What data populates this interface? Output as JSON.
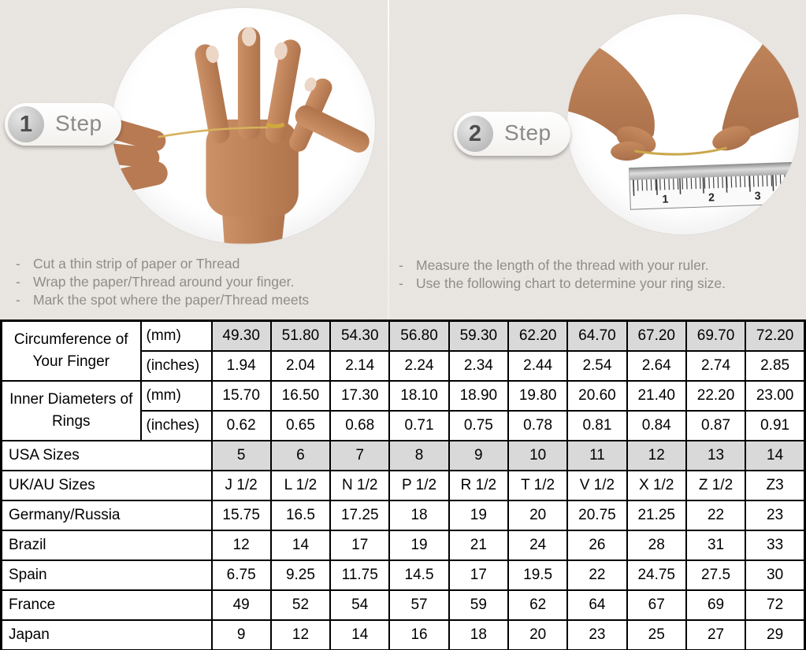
{
  "page": {
    "background": "#e9e6e2",
    "shade_color": "#d9d9d9",
    "text_gray": "#8f8c89"
  },
  "steps": [
    {
      "number": "1",
      "label": "Step",
      "bullet": "-",
      "instructions": [
        "Cut a thin strip of paper or Thread",
        "Wrap the paper/Thread around your finger.",
        "Mark the spot where the paper/Thread meets"
      ]
    },
    {
      "number": "2",
      "label": "Step",
      "bullet": "-",
      "instructions": [
        "Measure the length of the thread with your ruler.",
        "Use the following chart to determine your ring size."
      ]
    }
  ],
  "photos": {
    "step1": "hand with ring and thread",
    "step2": "hands measuring thread with ruler",
    "ruler_numbers": [
      "1",
      "2",
      "3"
    ]
  },
  "table": {
    "rows": [
      {
        "label": "Circumference of Your Finger",
        "center": true,
        "rowspan": 2,
        "unit": "(mm)",
        "shaded": true,
        "values": [
          "49.30",
          "51.80",
          "54.30",
          "56.80",
          "59.30",
          "62.20",
          "64.70",
          "67.20",
          "69.70",
          "72.20"
        ]
      },
      {
        "unit": "(inches)",
        "values": [
          "1.94",
          "2.04",
          "2.14",
          "2.24",
          "2.34",
          "2.44",
          "2.54",
          "2.64",
          "2.74",
          "2.85"
        ]
      },
      {
        "label": "Inner Diameters of Rings",
        "center": true,
        "rowspan": 2,
        "unit": "(mm)",
        "values": [
          "15.70",
          "16.50",
          "17.30",
          "18.10",
          "18.90",
          "19.80",
          "20.60",
          "21.40",
          "22.20",
          "23.00"
        ]
      },
      {
        "unit": "(inches)",
        "values": [
          "0.62",
          "0.65",
          "0.68",
          "0.71",
          "0.75",
          "0.78",
          "0.81",
          "0.84",
          "0.87",
          "0.91"
        ]
      },
      {
        "label": "USA Sizes",
        "colspan": 2,
        "shaded": true,
        "values": [
          "5",
          "6",
          "7",
          "8",
          "9",
          "10",
          "11",
          "12",
          "13",
          "14"
        ]
      },
      {
        "label": "UK/AU Sizes",
        "colspan": 2,
        "values": [
          "J 1/2",
          "L 1/2",
          "N 1/2",
          "P 1/2",
          "R 1/2",
          "T 1/2",
          "V 1/2",
          "X 1/2",
          "Z 1/2",
          "Z3"
        ]
      },
      {
        "label": "Germany/Russia",
        "colspan": 2,
        "values": [
          "15.75",
          "16.5",
          "17.25",
          "18",
          "19",
          "20",
          "20.75",
          "21.25",
          "22",
          "23"
        ]
      },
      {
        "label": "Brazil",
        "colspan": 2,
        "values": [
          "12",
          "14",
          "17",
          "19",
          "21",
          "24",
          "26",
          "28",
          "31",
          "33"
        ]
      },
      {
        "label": "Spain",
        "colspan": 2,
        "values": [
          "6.75",
          "9.25",
          "11.75",
          "14.5",
          "17",
          "19.5",
          "22",
          "24.75",
          "27.5",
          "30"
        ]
      },
      {
        "label": "France",
        "colspan": 2,
        "values": [
          "49",
          "52",
          "54",
          "57",
          "59",
          "62",
          "64",
          "67",
          "69",
          "72"
        ]
      },
      {
        "label": "Japan",
        "colspan": 2,
        "values": [
          "9",
          "12",
          "14",
          "16",
          "18",
          "20",
          "23",
          "25",
          "27",
          "29"
        ]
      }
    ]
  }
}
